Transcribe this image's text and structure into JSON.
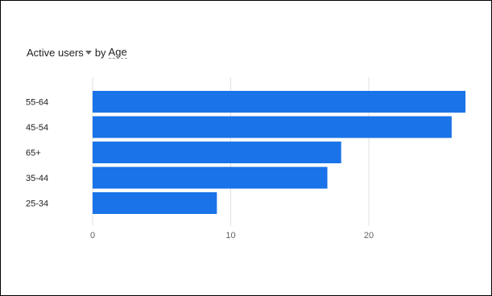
{
  "header": {
    "metric_label": "Active users",
    "by_label": "by",
    "dimension_label": "Age"
  },
  "icons": {
    "metric_dropdown": "caret-down-icon"
  },
  "colors": {
    "bar": "#1a73e8",
    "grid": "#e0e0e0",
    "text": "#202124",
    "tick": "#5f6368"
  },
  "chart_data": {
    "type": "bar",
    "orientation": "horizontal",
    "title": "",
    "xlabel": "",
    "ylabel": "",
    "categories": [
      "55-64",
      "45-54",
      "65+",
      "35-44",
      "25-34"
    ],
    "values": [
      27,
      26,
      18,
      17,
      9
    ],
    "xlim": [
      0,
      27
    ],
    "xticks": [
      0,
      10,
      20
    ],
    "grid": true,
    "legend": "none"
  }
}
